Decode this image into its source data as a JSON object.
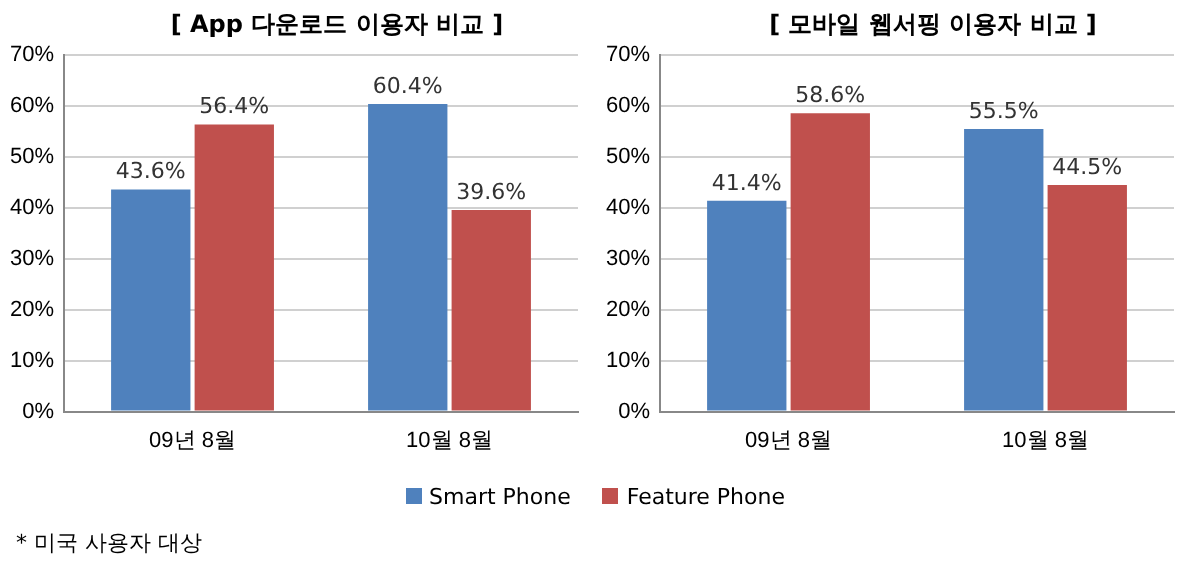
{
  "chart_data": [
    {
      "type": "bar",
      "title": "[ App 다운로드 이용자 비교 ]",
      "categories": [
        "09년 8월",
        "10월 8월"
      ],
      "series": [
        {
          "name": "Smart Phone",
          "color": "#4f81bd",
          "values": [
            43.6,
            60.4
          ]
        },
        {
          "name": "Feature Phone",
          "color": "#c0504d",
          "values": [
            56.4,
            39.6
          ]
        }
      ],
      "ylim": [
        0,
        70
      ],
      "yticks": [
        {
          "value": 0,
          "label": "0%"
        },
        {
          "value": 10,
          "label": "10%"
        },
        {
          "value": 20,
          "label": "20%"
        },
        {
          "value": 30,
          "label": "30%"
        },
        {
          "value": 40,
          "label": "40%"
        },
        {
          "value": 50,
          "label": "50%"
        },
        {
          "value": 60,
          "label": "60%"
        },
        {
          "value": 70,
          "label": "70%"
        }
      ],
      "value_labels": [
        [
          "43.6%",
          "60.4%"
        ],
        [
          "56.4%",
          "39.6%"
        ]
      ],
      "grid": "y",
      "legend": "bottom",
      "annotations": [
        "* 미국 사용자 대상"
      ]
    },
    {
      "type": "bar",
      "title": "[ 모바일 웹서핑 이용자 비교 ]",
      "categories": [
        "09년 8월",
        "10월 8월"
      ],
      "series": [
        {
          "name": "Smart Phone",
          "color": "#4f81bd",
          "values": [
            41.4,
            55.5
          ]
        },
        {
          "name": "Feature Phone",
          "color": "#c0504d",
          "values": [
            58.6,
            44.5
          ]
        }
      ],
      "ylim": [
        0,
        70
      ],
      "yticks": [
        {
          "value": 0,
          "label": "0%"
        },
        {
          "value": 10,
          "label": "10%"
        },
        {
          "value": 20,
          "label": "20%"
        },
        {
          "value": 30,
          "label": "30%"
        },
        {
          "value": 40,
          "label": "40%"
        },
        {
          "value": 50,
          "label": "50%"
        },
        {
          "value": 60,
          "label": "60%"
        },
        {
          "value": 70,
          "label": "70%"
        }
      ],
      "value_labels": [
        [
          "41.4%",
          "55.5%"
        ],
        [
          "58.6%",
          "44.5%"
        ]
      ],
      "grid": "y",
      "legend": "bottom"
    }
  ]
}
